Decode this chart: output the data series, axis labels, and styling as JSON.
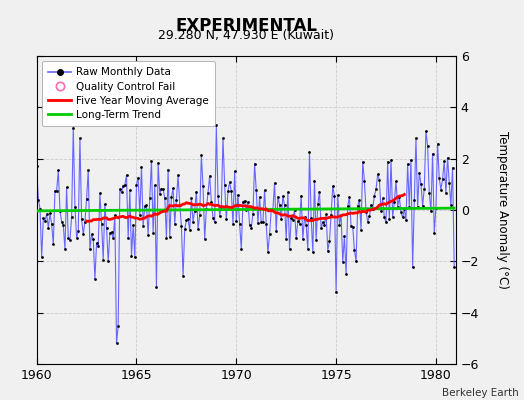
{
  "title": "EXPERIMENTAL",
  "subtitle": "29.280 N, 47.930 E (Kuwait)",
  "ylabel": "Temperature Anomaly (°C)",
  "credit": "Berkeley Earth",
  "xlim": [
    1960,
    1981
  ],
  "ylim": [
    -6,
    6
  ],
  "xticks": [
    1960,
    1965,
    1970,
    1975,
    1980
  ],
  "yticks": [
    -6,
    -4,
    -2,
    0,
    2,
    4,
    6
  ],
  "bg_color": "#f0f0f0",
  "plot_bg": "#f0f0f0",
  "raw_line_color": "#6666ff",
  "raw_dot_color": "#000000",
  "ma_color": "#ff0000",
  "trend_color": "#00cc00",
  "qc_color": "#ff69b4",
  "start_year": 1960,
  "n_months": 252
}
